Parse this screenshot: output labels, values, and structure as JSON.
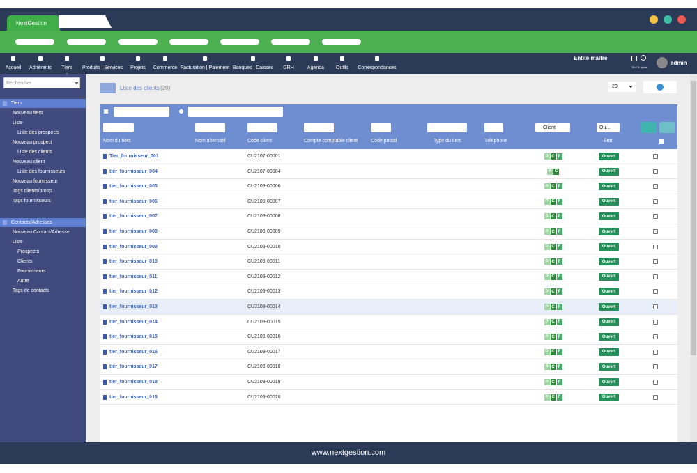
{
  "browser": {
    "tab_title": "NextGestion"
  },
  "nav": {
    "items": [
      "Accueil",
      "Adhérents",
      "Tiers",
      "Produits | Services",
      "Projets",
      "Commerce",
      "Facturation | Paiement",
      "Banques | Caisses",
      "GRH",
      "Agenda",
      "Outils",
      "Correspondances"
    ],
    "entity": "Entité maître",
    "user": "admin",
    "version": "15.0.3-alpha"
  },
  "sidebar": {
    "search_placeholder": "Rechercher",
    "sections": [
      {
        "title": "Tiers",
        "items": [
          {
            "label": "Nouveau tiers"
          },
          {
            "label": "Liste",
            "children": [
              "Liste des prospects"
            ]
          },
          {
            "label": "Nouveau prospect",
            "children": [
              "Liste des clients"
            ]
          },
          {
            "label": "Nouveau client",
            "children": [
              "Liste des fournisseurs"
            ]
          },
          {
            "label": "Nouveau fournisseur"
          },
          {
            "label": "Tags clients/prosp."
          },
          {
            "label": "Tags fournisseurs"
          }
        ]
      },
      {
        "title": "Contacts/Adresses",
        "items": [
          {
            "label": "Nouveau Contact/Adresse"
          },
          {
            "label": "Liste",
            "children": [
              "Prospects",
              "Clients",
              "Fournisseurs",
              "Autre"
            ]
          },
          {
            "label": "Tags de contacts"
          }
        ]
      }
    ]
  },
  "page": {
    "title": "Liste des clients",
    "count": "(20)",
    "page_size": "20"
  },
  "table": {
    "columns": [
      "Nom du tiers",
      "Nom alternatif",
      "Code client",
      "Compte comptable client",
      "Code postal",
      "Type du tiers",
      "Téléphone",
      "État"
    ],
    "type_filter": "Client",
    "state_filter": "Ou...",
    "rows": [
      {
        "name": "Tier_fournisseur_001",
        "code": "CU2107-00001",
        "tags": [
          "P",
          "C",
          "F"
        ],
        "status": "Ouvert"
      },
      {
        "name": "tier_fournisseur_004",
        "code": "CU2107-00004",
        "tags": [
          "P",
          "C"
        ],
        "status": "Ouvert"
      },
      {
        "name": "tier_fournisseur_005",
        "code": "CU2109-00006",
        "tags": [
          "P",
          "C",
          "F"
        ],
        "status": "Ouvert"
      },
      {
        "name": "tier_fournisseur_006",
        "code": "CU2109-00007",
        "tags": [
          "P",
          "C",
          "F"
        ],
        "status": "Ouvert"
      },
      {
        "name": "tier_fournisseur_007",
        "code": "CU2109-00008",
        "tags": [
          "P",
          "C",
          "F"
        ],
        "status": "Ouvert"
      },
      {
        "name": "tier_fournisseur_008",
        "code": "CU2109-00009",
        "tags": [
          "P",
          "C",
          "F"
        ],
        "status": "Ouvert"
      },
      {
        "name": "tier_fournisseur_009",
        "code": "CU2109-00010",
        "tags": [
          "P",
          "C",
          "F"
        ],
        "status": "Ouvert"
      },
      {
        "name": "tier_fournisseur_010",
        "code": "CU2109-00011",
        "tags": [
          "P",
          "C",
          "F"
        ],
        "status": "Ouvert"
      },
      {
        "name": "tier_fournisseur_011",
        "code": "CU2109-00012",
        "tags": [
          "P",
          "C",
          "F"
        ],
        "status": "Ouvert"
      },
      {
        "name": "tier_fournisseur_012",
        "code": "CU2109-00013",
        "tags": [
          "P",
          "C",
          "F"
        ],
        "status": "Ouvert"
      },
      {
        "name": "tier_fournisseur_013",
        "code": "CU2109-00014",
        "tags": [
          "P",
          "C",
          "F"
        ],
        "status": "Ouvert"
      },
      {
        "name": "tier_fournisseur_014",
        "code": "CU2109-00015",
        "tags": [
          "P",
          "C",
          "F"
        ],
        "status": "Ouvert"
      },
      {
        "name": "tier_fournisseur_015",
        "code": "CU2109-00016",
        "tags": [
          "P",
          "C",
          "F"
        ],
        "status": "Ouvert"
      },
      {
        "name": "tier_fournisseur_016",
        "code": "CU2109-00017",
        "tags": [
          "P",
          "C",
          "F"
        ],
        "status": "Ouvert"
      },
      {
        "name": "tier_fournisseur_017",
        "code": "CU2109-00018",
        "tags": [
          "P",
          "C",
          "F"
        ],
        "status": "Ouvert"
      },
      {
        "name": "tier_fournisseur_018",
        "code": "CU2109-00019",
        "tags": [
          "P",
          "C",
          "F"
        ],
        "status": "Ouvert"
      },
      {
        "name": "tier_fournisseur_019",
        "code": "CU2109-00020",
        "tags": [
          "P",
          "C",
          "F"
        ],
        "status": "Ouvert"
      }
    ]
  },
  "footer": {
    "url": "www.nextgestion.com"
  }
}
